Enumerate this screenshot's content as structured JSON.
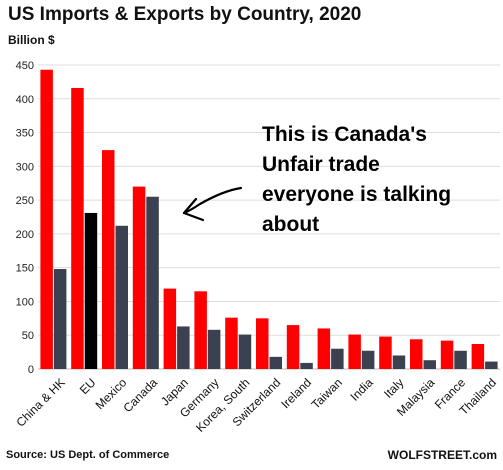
{
  "chart_data": {
    "type": "bar",
    "title": "US Imports & Exports by Country, 2020",
    "ylabel": "Billion $",
    "ylim": [
      0,
      450
    ],
    "yticks": [
      0,
      50,
      100,
      150,
      200,
      250,
      300,
      350,
      400,
      450
    ],
    "grid": true,
    "categories": [
      "China & HK",
      "EU",
      "Mexico",
      "Canada",
      "Japan",
      "Germany",
      "Korea, South",
      "Switzerland",
      "Ireland",
      "Taiwan",
      "India",
      "Italy",
      "Malaysia",
      "France",
      "Thailand"
    ],
    "series": [
      {
        "color": "#ff0000",
        "values": [
          443,
          416,
          324,
          270,
          119,
          115,
          76,
          75,
          65,
          60,
          51,
          48,
          44,
          42,
          37
        ]
      },
      {
        "color": "#3b4151",
        "values": [
          148,
          231,
          212,
          255,
          63,
          58,
          51,
          18,
          9,
          30,
          27,
          20,
          13,
          27,
          11
        ]
      }
    ],
    "highlight": {
      "index": 1,
      "series": 1,
      "color": "#000000"
    },
    "annotation": {
      "lines": [
        "This is Canada's",
        "Unfair trade",
        "everyone is talking",
        "about"
      ]
    }
  },
  "footer": {
    "source": "Source: US Dept. of Commerce",
    "brand": "WOLFSTREET.com"
  }
}
